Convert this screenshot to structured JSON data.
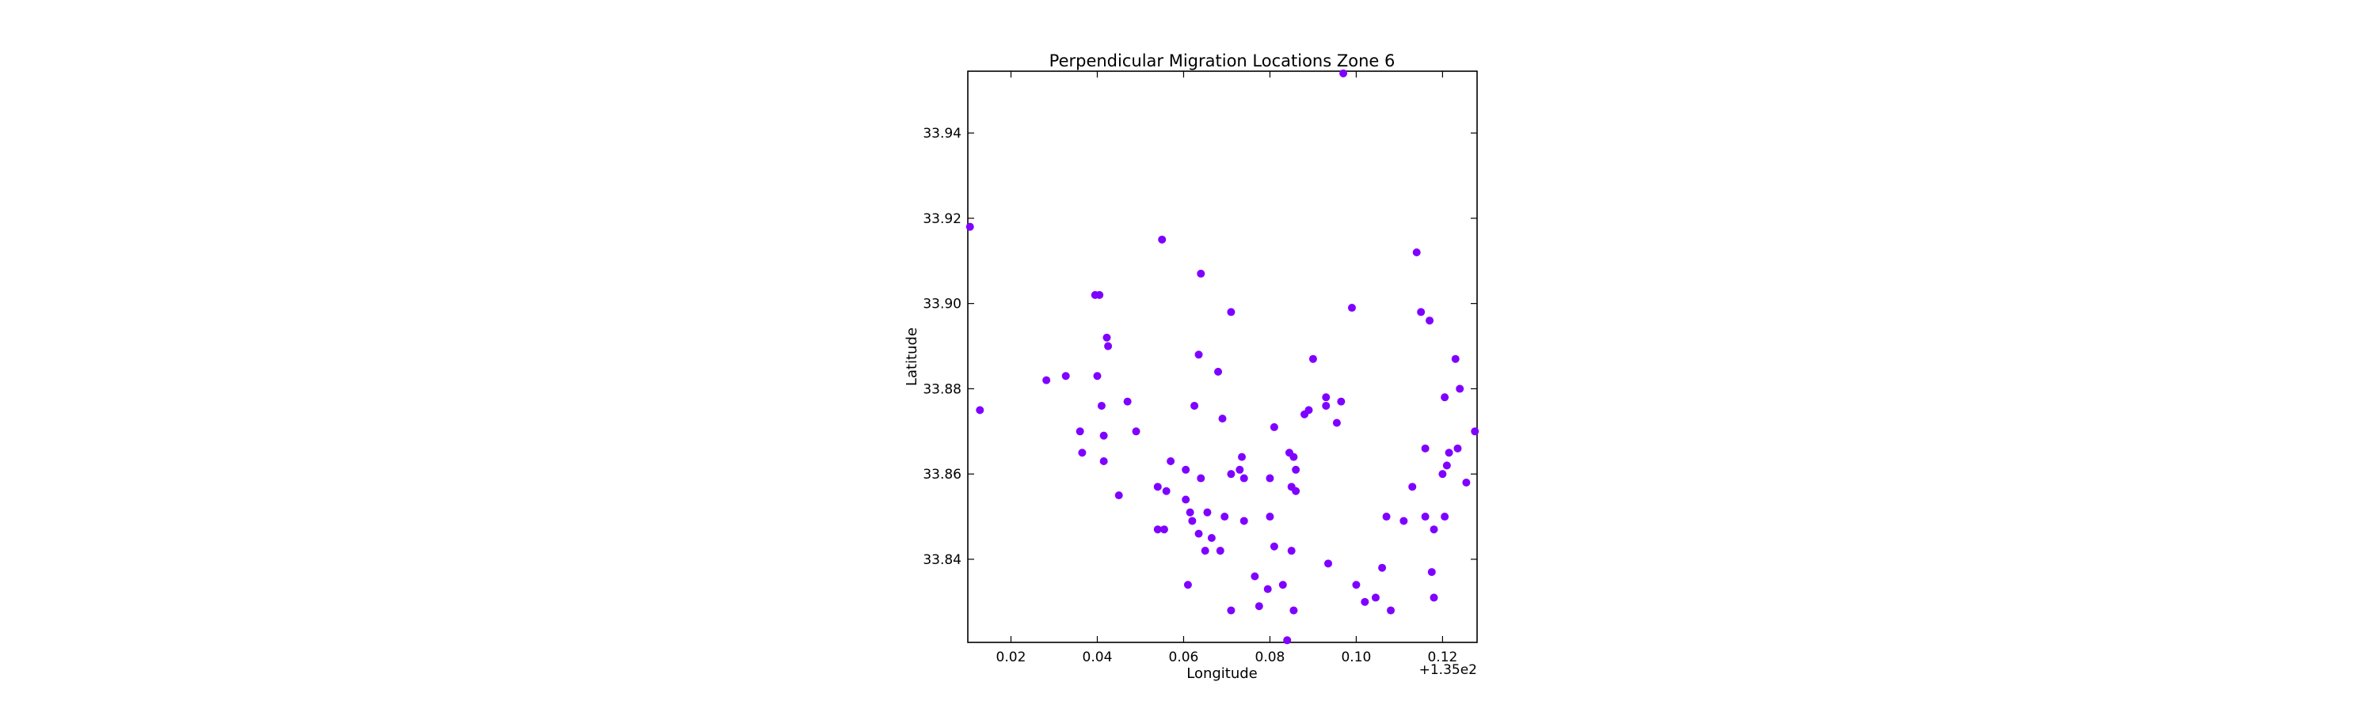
{
  "chart_data": {
    "type": "scatter",
    "title": "Perpendicular Migration Locations Zone 6",
    "xlabel": "Longitude",
    "ylabel": "Latitude",
    "x_offset_label": "+1.35e2",
    "xlim": [
      0.01,
      0.128
    ],
    "ylim": [
      33.8205,
      33.9545
    ],
    "xticks": [
      0.02,
      0.04,
      0.06,
      0.08,
      0.1,
      0.12
    ],
    "xtick_labels": [
      "0.02",
      "0.04",
      "0.06",
      "0.08",
      "0.10",
      "0.12"
    ],
    "yticks": [
      33.84,
      33.86,
      33.88,
      33.9,
      33.92,
      33.94
    ],
    "ytick_labels": [
      "33.84",
      "33.86",
      "33.88",
      "33.90",
      "33.92",
      "33.94"
    ],
    "grid": false,
    "legend": "none",
    "marker_color": "#7f00ff",
    "points": [
      [
        0.0105,
        33.918
      ],
      [
        0.0128,
        33.875
      ],
      [
        0.0282,
        33.882
      ],
      [
        0.0327,
        33.883
      ],
      [
        0.0395,
        33.902
      ],
      [
        0.0405,
        33.902
      ],
      [
        0.04,
        33.883
      ],
      [
        0.0422,
        33.892
      ],
      [
        0.0425,
        33.89
      ],
      [
        0.041,
        33.876
      ],
      [
        0.047,
        33.877
      ],
      [
        0.049,
        33.87
      ],
      [
        0.036,
        33.87
      ],
      [
        0.0365,
        33.865
      ],
      [
        0.0415,
        33.869
      ],
      [
        0.0415,
        33.863
      ],
      [
        0.045,
        33.855
      ],
      [
        0.055,
        33.915
      ],
      [
        0.054,
        33.857
      ],
      [
        0.056,
        33.856
      ],
      [
        0.057,
        33.863
      ],
      [
        0.054,
        33.847
      ],
      [
        0.0555,
        33.847
      ],
      [
        0.0605,
        33.861
      ],
      [
        0.0605,
        33.854
      ],
      [
        0.0615,
        33.851
      ],
      [
        0.062,
        33.849
      ],
      [
        0.0625,
        33.876
      ],
      [
        0.064,
        33.907
      ],
      [
        0.0635,
        33.888
      ],
      [
        0.064,
        33.859
      ],
      [
        0.0635,
        33.846
      ],
      [
        0.065,
        33.842
      ],
      [
        0.0655,
        33.851
      ],
      [
        0.0665,
        33.845
      ],
      [
        0.068,
        33.884
      ],
      [
        0.069,
        33.873
      ],
      [
        0.0695,
        33.85
      ],
      [
        0.0685,
        33.842
      ],
      [
        0.071,
        33.898
      ],
      [
        0.071,
        33.86
      ],
      [
        0.0735,
        33.864
      ],
      [
        0.073,
        33.861
      ],
      [
        0.074,
        33.859
      ],
      [
        0.074,
        33.849
      ],
      [
        0.061,
        33.834
      ],
      [
        0.071,
        33.828
      ],
      [
        0.0765,
        33.836
      ],
      [
        0.0775,
        33.829
      ],
      [
        0.0795,
        33.833
      ],
      [
        0.08,
        33.859
      ],
      [
        0.08,
        33.85
      ],
      [
        0.081,
        33.871
      ],
      [
        0.081,
        33.843
      ],
      [
        0.083,
        33.834
      ],
      [
        0.084,
        33.821
      ],
      [
        0.0845,
        33.865
      ],
      [
        0.0855,
        33.864
      ],
      [
        0.086,
        33.861
      ],
      [
        0.085,
        33.857
      ],
      [
        0.086,
        33.856
      ],
      [
        0.085,
        33.842
      ],
      [
        0.0855,
        33.828
      ],
      [
        0.088,
        33.874
      ],
      [
        0.089,
        33.875
      ],
      [
        0.09,
        33.887
      ],
      [
        0.093,
        33.878
      ],
      [
        0.093,
        33.876
      ],
      [
        0.0935,
        33.839
      ],
      [
        0.0955,
        33.872
      ],
      [
        0.0965,
        33.877
      ],
      [
        0.097,
        33.954
      ],
      [
        0.099,
        33.899
      ],
      [
        0.1,
        33.834
      ],
      [
        0.102,
        33.83
      ],
      [
        0.1045,
        33.831
      ],
      [
        0.106,
        33.838
      ],
      [
        0.107,
        33.85
      ],
      [
        0.108,
        33.828
      ],
      [
        0.111,
        33.849
      ],
      [
        0.114,
        33.912
      ],
      [
        0.113,
        33.857
      ],
      [
        0.115,
        33.898
      ],
      [
        0.116,
        33.866
      ],
      [
        0.116,
        33.85
      ],
      [
        0.117,
        33.896
      ],
      [
        0.1175,
        33.837
      ],
      [
        0.118,
        33.847
      ],
      [
        0.118,
        33.831
      ],
      [
        0.12,
        33.86
      ],
      [
        0.1205,
        33.878
      ],
      [
        0.1205,
        33.85
      ],
      [
        0.121,
        33.862
      ],
      [
        0.1215,
        33.865
      ],
      [
        0.123,
        33.887
      ],
      [
        0.1235,
        33.866
      ],
      [
        0.124,
        33.88
      ],
      [
        0.1255,
        33.858
      ],
      [
        0.1275,
        33.87
      ]
    ]
  }
}
